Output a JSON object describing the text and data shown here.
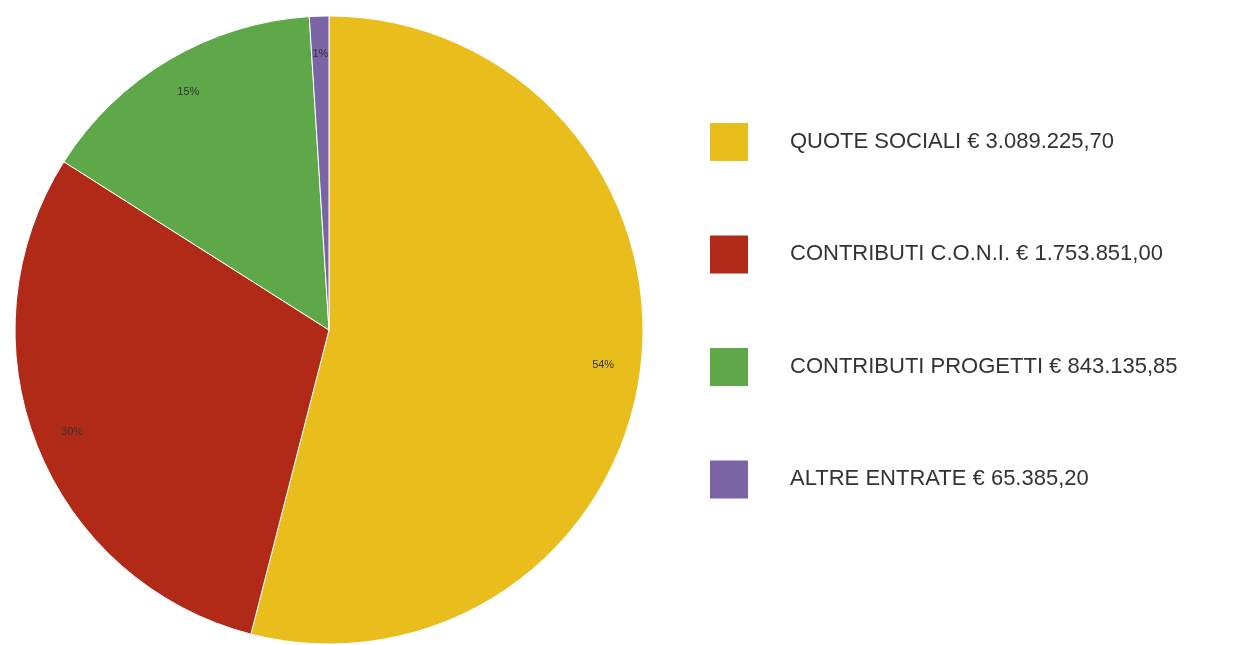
{
  "chart_data": {
    "type": "pie",
    "categories": [
      "QUOTE SOCIALI € 3.089.225,70",
      "CONTRIBUTI C.O.N.I. € 1.753.851,00",
      "CONTRIBUTI PROGETTI € 843.135,85",
      "ALTRE ENTRATE € 65.385,20"
    ],
    "values": [
      54,
      30,
      15,
      1
    ],
    "colors": [
      "#e9bd1c",
      "#b02a17",
      "#5ea84a",
      "#7b64a6"
    ],
    "value_labels": [
      "54%",
      "30%",
      "15%",
      "1%"
    ],
    "legend": "right"
  }
}
